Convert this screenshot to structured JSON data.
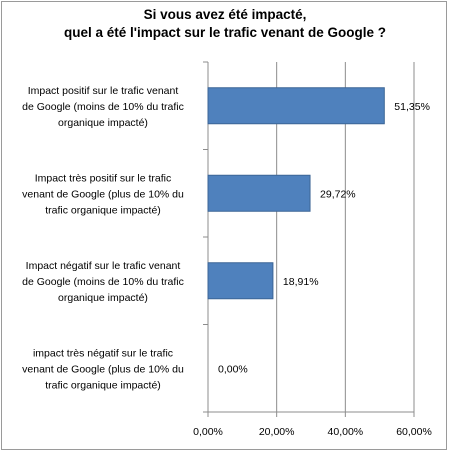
{
  "chart_data": {
    "type": "bar",
    "orientation": "horizontal",
    "title_lines": [
      "Si vous avez été impacté,",
      "quel a été l'impact sur le trafic venant de Google ?"
    ],
    "categories": [
      [
        "Impact positif sur le trafic venant",
        "de Google (moins de 10% du trafic",
        "organique impacté)"
      ],
      [
        "Impact très positif sur le trafic",
        "venant de Google  (plus de 10% du",
        "trafic organique impacté)"
      ],
      [
        "Impact négatif sur le trafic venant",
        "de Google (moins de 10% du trafic",
        "organique impacté)"
      ],
      [
        "impact très négatif sur le trafic",
        "venant de Google (plus de 10% du",
        "trafic organique impacté)"
      ]
    ],
    "values": [
      51.35,
      29.72,
      18.91,
      0.0
    ],
    "value_labels": [
      "51,35%",
      "29,72%",
      "18,91%",
      "0,00%"
    ],
    "xlim": [
      0,
      60
    ],
    "x_ticks": [
      0,
      20,
      40,
      60
    ],
    "x_tick_labels": [
      "0,00%",
      "20,00%",
      "40,00%",
      "60,00%"
    ],
    "grid": true,
    "legend": "none",
    "colors": {
      "bar": "#4f81bd",
      "bar_border": "#3c6596",
      "grid": "#8c8c8c",
      "axis": "#8c8c8c"
    }
  }
}
